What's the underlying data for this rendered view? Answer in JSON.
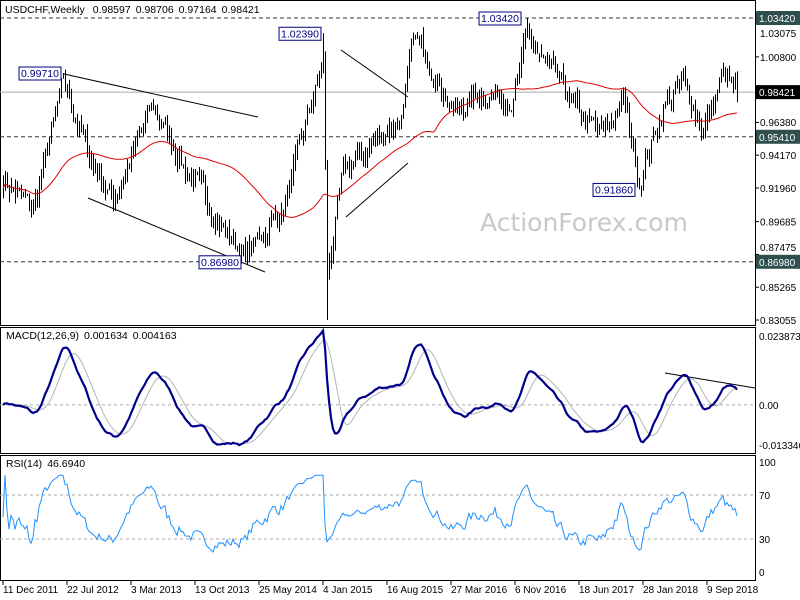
{
  "header": {
    "symbol": "USDCHF,Weekly",
    "open": "0.98597",
    "high": "0.98706",
    "low": "0.97164",
    "close": "0.98421"
  },
  "watermark": "ActionForex.com",
  "chart_data": {
    "type": "candlestick",
    "title": "USDCHF,Weekly",
    "colors": {
      "candle": "#000000",
      "ma": "#e00000",
      "macd": "#00008b",
      "signal": "#b4b4b4",
      "rsi": "#1e90ff",
      "level_box": "#2f4f4f",
      "current_box": "#000000"
    },
    "price_axis": {
      "range": [
        0.83055,
        1.0342
      ],
      "ticks": [
        "1.03075",
        "1.00800",
        "0.96380",
        "0.94170",
        "0.91960",
        "0.89685",
        "0.87475",
        "0.85265",
        "0.83055"
      ]
    },
    "levels": [
      {
        "label": "1.03420",
        "value": 1.0342
      },
      {
        "label": "0.95410",
        "value": 0.9541
      },
      {
        "label": "0.86980",
        "value": 0.8698
      }
    ],
    "current": {
      "label": "0.98421",
      "value": 0.98421
    },
    "annotations": [
      {
        "label": "0.99710",
        "week": 30,
        "value": 0.9971
      },
      {
        "label": "1.02390",
        "week": 160,
        "value": 1.0239
      },
      {
        "label": "1.03420",
        "week": 262,
        "value": 1.0342
      },
      {
        "label": "0.86980",
        "week": 121,
        "value": 0.8698
      },
      {
        "label": "0.91860",
        "week": 318,
        "value": 0.9186
      }
    ],
    "x_ticks": [
      "11 Dec 2011",
      "22 Jul 2012",
      "3 Mar 2013",
      "13 Oct 2013",
      "25 May 2014",
      "4 Jan 2015",
      "16 Aug 2015",
      "27 Mar 2016",
      "6 Nov 2016",
      "18 Jun 2017",
      "28 Jan 2018",
      "9 Sep 2018"
    ],
    "weeks_per_tick": 32,
    "key_points": [
      [
        0,
        0.925
      ],
      [
        15,
        0.905
      ],
      [
        30,
        0.99
      ],
      [
        45,
        0.935
      ],
      [
        55,
        0.912
      ],
      [
        75,
        0.975
      ],
      [
        90,
        0.935
      ],
      [
        110,
        0.893
      ],
      [
        121,
        0.874
      ],
      [
        130,
        0.89
      ],
      [
        140,
        0.905
      ],
      [
        150,
        0.955
      ],
      [
        160,
        1.005
      ],
      [
        162,
        0.86
      ],
      [
        170,
        0.93
      ],
      [
        185,
        0.95
      ],
      [
        200,
        0.97
      ],
      [
        205,
        1.02
      ],
      [
        212,
        1.01
      ],
      [
        225,
        0.97
      ],
      [
        240,
        0.985
      ],
      [
        255,
        0.98
      ],
      [
        262,
        1.02
      ],
      [
        275,
        0.995
      ],
      [
        290,
        0.965
      ],
      [
        300,
        0.955
      ],
      [
        310,
        0.98
      ],
      [
        318,
        0.925
      ],
      [
        330,
        0.975
      ],
      [
        340,
        0.99
      ],
      [
        350,
        0.96
      ],
      [
        360,
        0.995
      ],
      [
        367,
        0.98421
      ]
    ],
    "extremes": [
      {
        "week": 30,
        "high": 0.9971
      },
      {
        "week": 121,
        "low": 0.8698
      },
      {
        "week": 160,
        "high": 1.0239
      },
      {
        "week": 162,
        "low": 0.83055
      },
      {
        "week": 262,
        "high": 1.0342
      },
      {
        "week": 318,
        "low": 0.9186
      }
    ],
    "ma_period": 55,
    "macd": {
      "label": "MACD(12,26,9)",
      "main": "0.001634",
      "signal": "0.004163",
      "range": [
        -0.013346,
        0.023873
      ],
      "ticks": [
        "0.023873",
        "0.00",
        "-0.013346"
      ]
    },
    "rsi": {
      "label": "RSI(14)",
      "value": "46.6940",
      "range": [
        0,
        100
      ],
      "ticks": [
        "100",
        "70",
        "30",
        "0"
      ]
    }
  }
}
